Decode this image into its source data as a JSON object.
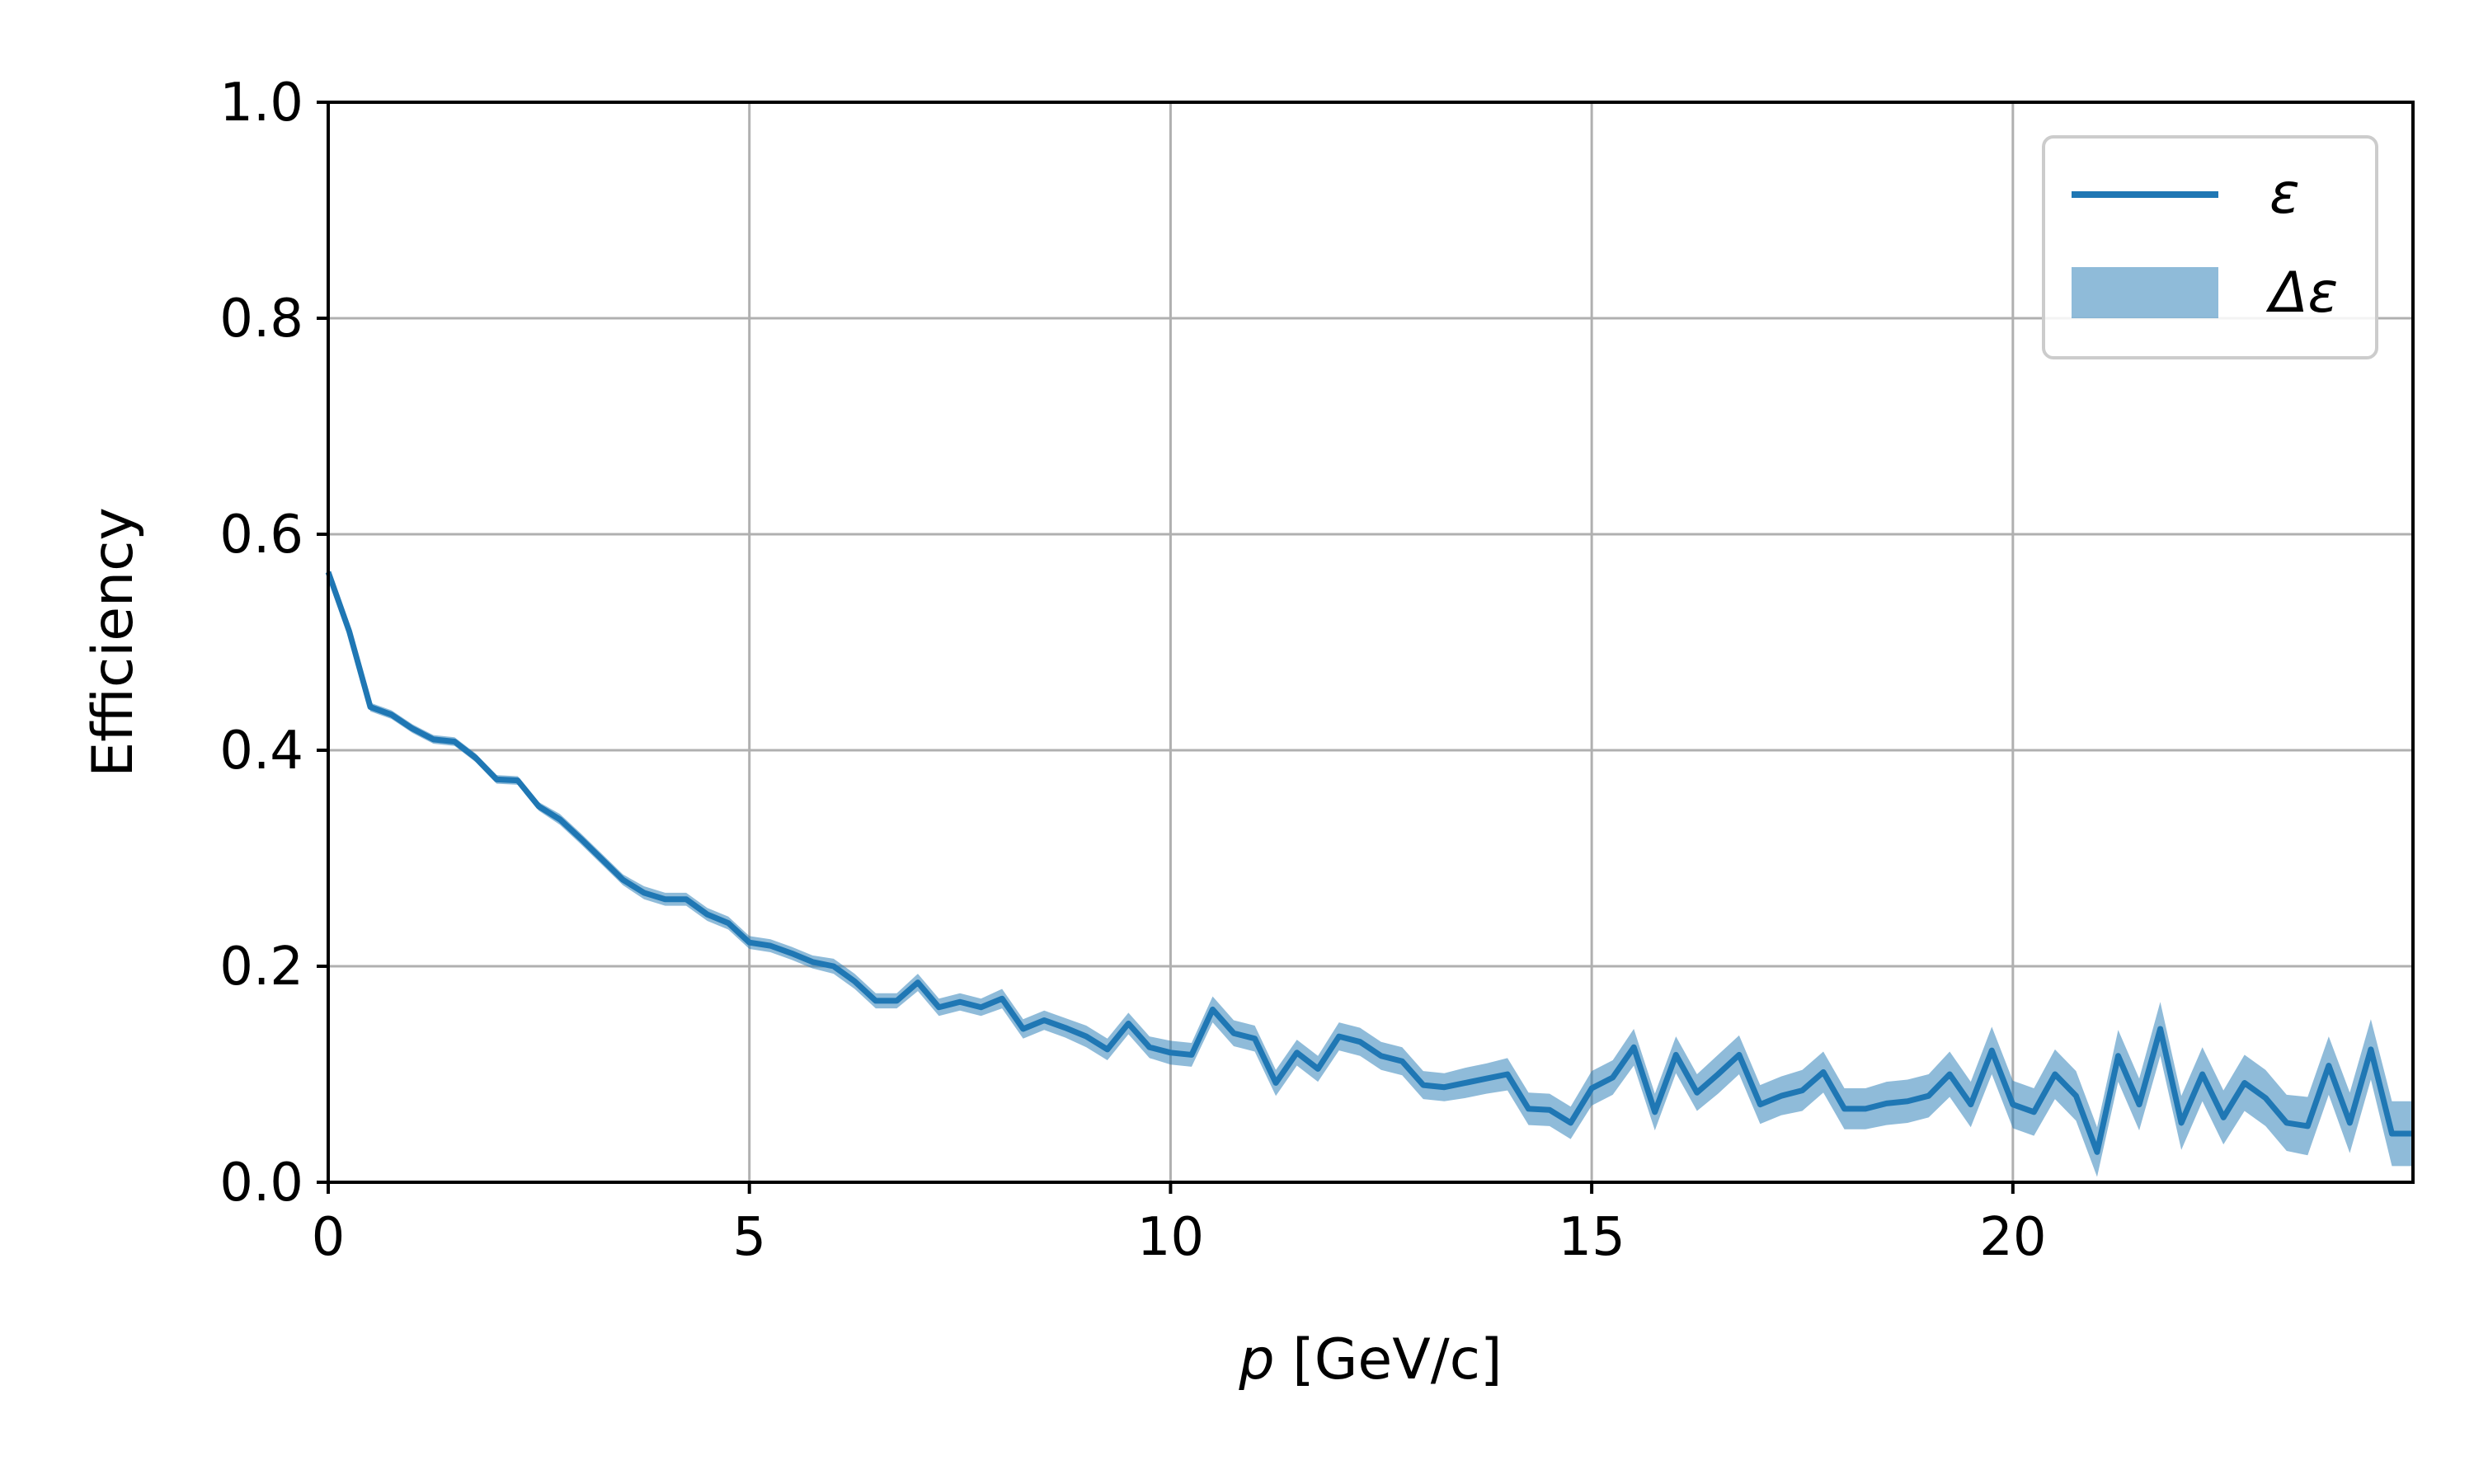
{
  "chart_data": {
    "type": "line",
    "xlabel_var": "p",
    "xlabel_unit": " [GeV/c]",
    "ylabel": "Efficiency",
    "xlim": [
      0,
      24.75
    ],
    "ylim": [
      0,
      1.0
    ],
    "xticks": [
      0,
      5,
      10,
      15,
      20
    ],
    "xtick_labels": [
      "0",
      "5",
      "10",
      "15",
      "20"
    ],
    "yticks": [
      0.0,
      0.2,
      0.4,
      0.6,
      0.8,
      1.0
    ],
    "ytick_labels": [
      "0.0",
      "0.2",
      "0.4",
      "0.6",
      "0.8",
      "1.0"
    ],
    "grid": true,
    "legend_position": "top-right",
    "legend": [
      {
        "label": "ε",
        "kind": "line"
      },
      {
        "label": "Δε",
        "kind": "band"
      }
    ],
    "colors": {
      "line": "#1f77b4",
      "band": "#1f77b4",
      "band_opacity": 0.5,
      "grid": "#b0b0b0"
    },
    "series": [
      {
        "name": "ε",
        "x": [
          0.0,
          0.25,
          0.5,
          0.75,
          1.0,
          1.25,
          1.5,
          1.75,
          2.0,
          2.25,
          2.5,
          2.75,
          3.0,
          3.25,
          3.5,
          3.75,
          4.0,
          4.25,
          4.5,
          4.75,
          5.0,
          5.25,
          5.5,
          5.75,
          6.0,
          6.25,
          6.5,
          6.75,
          7.0,
          7.25,
          7.5,
          7.75,
          8.0,
          8.25,
          8.5,
          8.75,
          9.0,
          9.25,
          9.5,
          9.75,
          10.0,
          10.25,
          10.5,
          10.75,
          11.0,
          11.25,
          11.5,
          11.75,
          12.0,
          12.25,
          12.5,
          12.75,
          13.0,
          13.25,
          13.5,
          13.75,
          14.0,
          14.25,
          14.5,
          14.75,
          15.0,
          15.25,
          15.5,
          15.75,
          16.0,
          16.25,
          16.5,
          16.75,
          17.0,
          17.25,
          17.5,
          17.75,
          18.0,
          18.25,
          18.5,
          18.75,
          19.0,
          19.25,
          19.5,
          19.75,
          20.0,
          20.25,
          20.5,
          20.75,
          21.0,
          21.25,
          21.5,
          21.75,
          22.0,
          22.25,
          22.5,
          22.75,
          23.0,
          23.25,
          23.5,
          23.75,
          24.0,
          24.25,
          24.5,
          24.75
        ],
        "y": [
          0.565,
          0.51,
          0.44,
          0.433,
          0.42,
          0.41,
          0.408,
          0.393,
          0.373,
          0.372,
          0.348,
          0.336,
          0.318,
          0.299,
          0.28,
          0.268,
          0.262,
          0.262,
          0.248,
          0.24,
          0.222,
          0.219,
          0.212,
          0.204,
          0.2,
          0.186,
          0.168,
          0.168,
          0.185,
          0.162,
          0.167,
          0.162,
          0.17,
          0.142,
          0.15,
          0.143,
          0.135,
          0.123,
          0.147,
          0.125,
          0.12,
          0.118,
          0.16,
          0.138,
          0.133,
          0.092,
          0.12,
          0.105,
          0.135,
          0.13,
          0.117,
          0.112,
          0.09,
          0.088,
          0.092,
          0.096,
          0.1,
          0.068,
          0.067,
          0.055,
          0.087,
          0.097,
          0.125,
          0.065,
          0.118,
          0.083,
          0.1,
          0.118,
          0.072,
          0.08,
          0.085,
          0.102,
          0.068,
          0.068,
          0.073,
          0.075,
          0.08,
          0.1,
          0.072,
          0.122,
          0.072,
          0.065,
          0.1,
          0.08,
          0.028,
          0.117,
          0.072,
          0.142,
          0.055,
          0.1,
          0.06,
          0.092,
          0.078,
          0.055,
          0.052,
          0.108,
          0.055,
          0.123,
          0.045,
          0.045
        ],
        "err": [
          0.003,
          0.004,
          0.004,
          0.004,
          0.004,
          0.004,
          0.004,
          0.004,
          0.004,
          0.004,
          0.004,
          0.005,
          0.005,
          0.005,
          0.005,
          0.006,
          0.006,
          0.006,
          0.006,
          0.006,
          0.006,
          0.006,
          0.006,
          0.006,
          0.007,
          0.007,
          0.007,
          0.007,
          0.008,
          0.008,
          0.008,
          0.008,
          0.009,
          0.009,
          0.009,
          0.009,
          0.01,
          0.01,
          0.01,
          0.01,
          0.011,
          0.011,
          0.012,
          0.012,
          0.012,
          0.012,
          0.012,
          0.012,
          0.013,
          0.013,
          0.013,
          0.013,
          0.013,
          0.013,
          0.014,
          0.014,
          0.015,
          0.015,
          0.015,
          0.015,
          0.016,
          0.016,
          0.017,
          0.017,
          0.017,
          0.017,
          0.018,
          0.018,
          0.018,
          0.018,
          0.019,
          0.019,
          0.019,
          0.019,
          0.02,
          0.02,
          0.02,
          0.021,
          0.021,
          0.022,
          0.022,
          0.022,
          0.023,
          0.023,
          0.023,
          0.024,
          0.024,
          0.025,
          0.025,
          0.025,
          0.025,
          0.026,
          0.026,
          0.026,
          0.027,
          0.027,
          0.028,
          0.028,
          0.03,
          0.03
        ]
      }
    ]
  }
}
